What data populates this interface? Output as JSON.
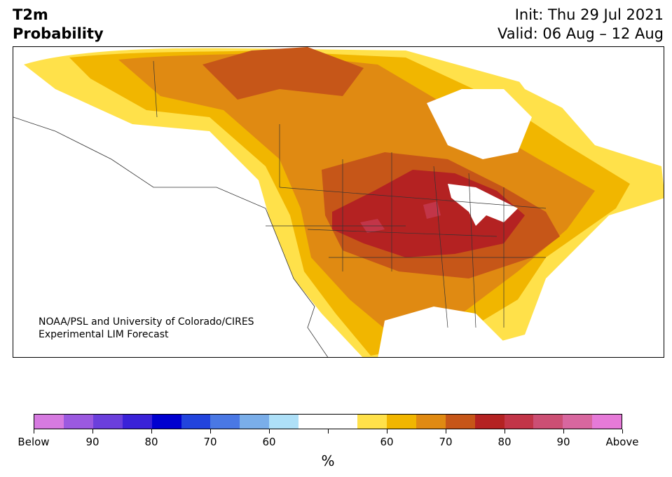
{
  "title": {
    "line1": "T2m",
    "line2": "Probability"
  },
  "init": {
    "line1": "Init: Thu 29 Jul 2021",
    "line2": "Valid: 06 Aug – 12 Aug"
  },
  "credit": {
    "line1": "NOAA/PSL and University of Colorado/CIRES",
    "line2": "Experimental LIM Forecast"
  },
  "colorbar": {
    "colors": [
      "#d67ae0",
      "#9b59e0",
      "#6b3fdc",
      "#3a22d8",
      "#0000d0",
      "#2244dd",
      "#4a78e4",
      "#7aaee9",
      "#aee0f8",
      "#ffffff",
      "#ffffff",
      "#ffe14a",
      "#f1b600",
      "#e08a12",
      "#c65618",
      "#b42222",
      "#c23548",
      "#cc4f74",
      "#d8679f",
      "#e67ad8"
    ],
    "labels": [
      "Below",
      "90",
      "80",
      "70",
      "60",
      "",
      "60",
      "70",
      "80",
      "90",
      "Above"
    ],
    "unit": "%"
  },
  "legend_colors": {
    "above_60": "#ffe14a",
    "above_65": "#f1b600",
    "above_70": "#e08a12",
    "above_75": "#c65618",
    "above_80": "#b42222",
    "above_85": "#c23548",
    "above_90": "#cc4f74"
  }
}
